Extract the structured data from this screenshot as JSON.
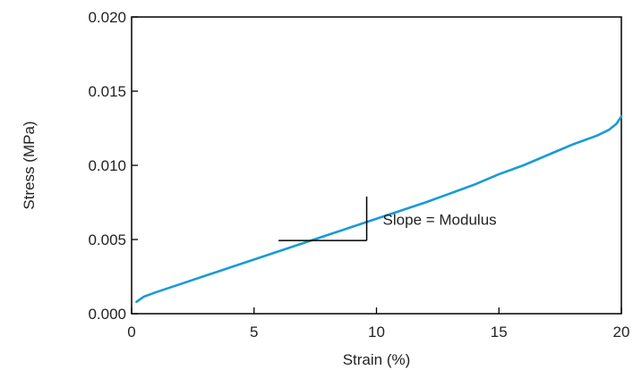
{
  "chart_data": {
    "type": "line",
    "title": "",
    "xlabel": "Strain (%)",
    "ylabel": "Stress (MPa)",
    "xlim": [
      0,
      20
    ],
    "ylim": [
      0,
      0.02
    ],
    "x_ticks": [
      {
        "value": 0,
        "label": "0"
      },
      {
        "value": 5,
        "label": "5"
      },
      {
        "value": 10,
        "label": "10"
      },
      {
        "value": 15,
        "label": "15"
      },
      {
        "value": 20,
        "label": "20"
      }
    ],
    "y_ticks": [
      {
        "value": 0,
        "label": "0.000"
      },
      {
        "value": 0.005,
        "label": "0.005"
      },
      {
        "value": 0.01,
        "label": "0.010"
      },
      {
        "value": 0.015,
        "label": "0.015"
      },
      {
        "value": 0.02,
        "label": "0.020"
      }
    ],
    "grid": false,
    "legend": "none",
    "series": [
      {
        "color": "#1a9ad6",
        "x": [
          0.2,
          0.5,
          1,
          2,
          3,
          4,
          5,
          6,
          7,
          8,
          9,
          10,
          11,
          12,
          13,
          14,
          15,
          16,
          17,
          18,
          19,
          19.5,
          19.8,
          20
        ],
        "y": [
          0.0008,
          0.00115,
          0.00145,
          0.002,
          0.00255,
          0.0031,
          0.00365,
          0.0042,
          0.00475,
          0.0053,
          0.00585,
          0.0064,
          0.00695,
          0.0075,
          0.0081,
          0.0087,
          0.0094,
          0.01,
          0.0107,
          0.0114,
          0.012,
          0.0124,
          0.0128,
          0.0133
        ]
      }
    ],
    "annotations": {
      "slope_label": "Slope = Modulus",
      "triangle": {
        "x1": 6,
        "x2": 9.6,
        "y_low": 0.00493,
        "y_high": 0.0079
      }
    }
  }
}
